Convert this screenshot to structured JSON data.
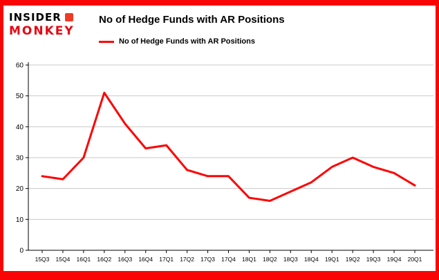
{
  "page": {
    "accent_red": "#f90505",
    "background": "#ffffff"
  },
  "logo": {
    "line1": "INSIDER",
    "line2": "MONKEY",
    "monkey_icon_color": "#ee3b24"
  },
  "header": {
    "title": "No of Hedge Funds with AR Positions"
  },
  "legend": {
    "label": "No of Hedge Funds with AR Positions",
    "color": "#ff0000"
  },
  "chart_data": {
    "type": "line",
    "title": "No of Hedge Funds with AR Positions",
    "categories": [
      "15Q3",
      "15Q4",
      "16Q1",
      "16Q2",
      "16Q3",
      "16Q4",
      "17Q1",
      "17Q2",
      "17Q3",
      "17Q4",
      "18Q1",
      "18Q2",
      "18Q3",
      "18Q4",
      "19Q1",
      "19Q2",
      "19Q3",
      "19Q4",
      "20Q1"
    ],
    "series": [
      {
        "name": "No of Hedge Funds with AR Positions",
        "color": "#ff0000",
        "values": [
          24,
          23,
          30,
          51,
          41,
          33,
          34,
          26,
          24,
          24,
          17,
          16,
          19,
          22,
          27,
          30,
          27,
          25,
          21
        ]
      }
    ],
    "ylim": [
      0,
      60
    ],
    "yticks": [
      0,
      10,
      20,
      30,
      40,
      50,
      60
    ],
    "xlabel": "",
    "ylabel": "",
    "grid": "horizontal",
    "grid_color": "#c9c9c9",
    "axis_color": "#000000",
    "legend_position": "top-left"
  }
}
